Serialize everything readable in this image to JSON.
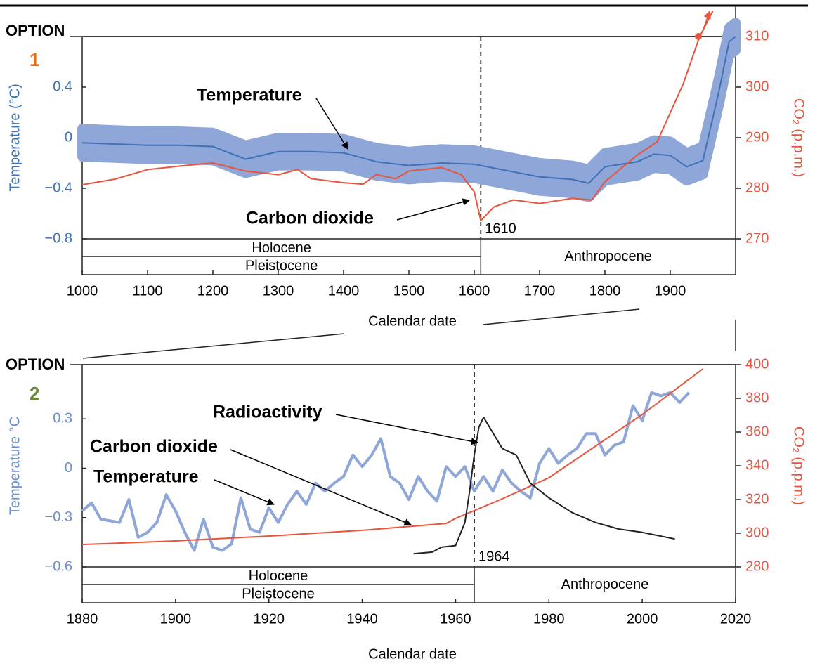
{
  "chart_data": [
    {
      "type": "line",
      "option": "OPTION",
      "option_number": "1",
      "option_color": "#e07020",
      "y_label": "Temperature (°C)",
      "y2_label": "CO₂ (p.p.m.)",
      "x_label": "Calendar date",
      "xlim": [
        1000,
        2000
      ],
      "xticks": [
        1000,
        1100,
        1200,
        1300,
        1400,
        1500,
        1600,
        1700,
        1800,
        1900
      ],
      "ylim": [
        -0.8,
        0.8
      ],
      "yticks": [
        {
          "value": -0.8,
          "label": "−0.8"
        },
        {
          "value": -0.4,
          "label": "−0.4"
        },
        0,
        0.4
      ],
      "y2lim": [
        270,
        310
      ],
      "y2ticks": [
        270,
        280,
        290,
        300,
        310
      ],
      "boundary": 1610,
      "epochs": [
        "Holocene",
        "Pleistocene",
        "Anthropocene"
      ],
      "series": [
        {
          "name": "Temperature",
          "color": "#3d72b8",
          "band_color": "#8ea6d8",
          "uncertainty": 0.11,
          "x": [
            1000,
            1050,
            1100,
            1150,
            1200,
            1250,
            1300,
            1350,
            1400,
            1450,
            1500,
            1550,
            1600,
            1650,
            1700,
            1750,
            1775,
            1800,
            1850,
            1875,
            1900,
            1925,
            1950,
            1975,
            1990,
            2000
          ],
          "values": [
            -0.04,
            -0.05,
            -0.06,
            -0.06,
            -0.07,
            -0.17,
            -0.11,
            -0.11,
            -0.12,
            -0.19,
            -0.22,
            -0.2,
            -0.21,
            -0.26,
            -0.31,
            -0.33,
            -0.36,
            -0.23,
            -0.19,
            -0.13,
            -0.14,
            -0.23,
            -0.18,
            0.38,
            0.76,
            0.8
          ]
        },
        {
          "name": "Carbon dioxide",
          "color": "#e8553e",
          "axis": "y2",
          "x": [
            1000,
            1050,
            1100,
            1150,
            1200,
            1250,
            1300,
            1330,
            1350,
            1400,
            1430,
            1450,
            1480,
            1500,
            1550,
            1580,
            1600,
            1610,
            1630,
            1660,
            1700,
            1750,
            1780,
            1800,
            1850,
            1880,
            1920,
            1945,
            1965
          ],
          "values": [
            280.7,
            281.8,
            283.7,
            284.4,
            285,
            283.4,
            282.7,
            283.7,
            281.9,
            281.1,
            280.8,
            282.7,
            281.9,
            283.4,
            284.1,
            282.7,
            279.3,
            273.6,
            276.3,
            277.7,
            277,
            278,
            277.7,
            281.3,
            286.6,
            289.2,
            300.7,
            310,
            315
          ]
        }
      ]
    },
    {
      "type": "line",
      "option": "OPTION",
      "option_number": "2",
      "option_color": "#6a8a3a",
      "y_label": "Temperature °C",
      "y2_label": "CO₂ (p.p.m.)",
      "x_label": "Calendar date",
      "xlim": [
        1880,
        2020
      ],
      "xticks": [
        1880,
        1900,
        1920,
        1940,
        1960,
        1980,
        2000,
        2020
      ],
      "ylim": [
        -0.6,
        0.63
      ],
      "yticks": [
        {
          "value": -0.6,
          "label": "−0.6"
        },
        {
          "value": -0.3,
          "label": "−0.3"
        },
        0,
        0.3
      ],
      "y2lim": [
        280,
        400
      ],
      "y2ticks": [
        280,
        300,
        320,
        340,
        360,
        380,
        400
      ],
      "boundary": 1964,
      "epochs": [
        "Holocene",
        "Pleistocene",
        "Anthropocene"
      ],
      "series": [
        {
          "name": "Temperature",
          "color": "#8fa6d9",
          "x": [
            1880,
            1882,
            1884,
            1886,
            1888,
            1890,
            1892,
            1894,
            1896,
            1898,
            1900,
            1902,
            1904,
            1906,
            1908,
            1910,
            1912,
            1914,
            1916,
            1918,
            1920,
            1922,
            1924,
            1926,
            1928,
            1930,
            1932,
            1934,
            1936,
            1938,
            1940,
            1942,
            1944,
            1946,
            1948,
            1950,
            1952,
            1954,
            1956,
            1958,
            1960,
            1962,
            1964,
            1966,
            1968,
            1970,
            1972,
            1974,
            1976,
            1978,
            1980,
            1982,
            1984,
            1986,
            1988,
            1990,
            1992,
            1994,
            1996,
            1998,
            2000,
            2002,
            2004,
            2006,
            2008,
            2010
          ],
          "values": [
            -0.26,
            -0.21,
            -0.31,
            -0.32,
            -0.33,
            -0.19,
            -0.42,
            -0.39,
            -0.33,
            -0.16,
            -0.26,
            -0.39,
            -0.5,
            -0.31,
            -0.48,
            -0.5,
            -0.46,
            -0.18,
            -0.37,
            -0.39,
            -0.24,
            -0.33,
            -0.22,
            -0.14,
            -0.22,
            -0.09,
            -0.14,
            -0.09,
            -0.05,
            0.08,
            0.01,
            0.08,
            0.18,
            -0.05,
            -0.09,
            -0.19,
            -0.05,
            -0.14,
            -0.2,
            0.01,
            -0.05,
            0.01,
            -0.14,
            -0.05,
            -0.14,
            -0.01,
            -0.09,
            -0.14,
            -0.18,
            0.03,
            0.12,
            0.03,
            0.08,
            0.12,
            0.21,
            0.21,
            0.08,
            0.14,
            0.16,
            0.38,
            0.29,
            0.46,
            0.44,
            0.46,
            0.4,
            0.46
          ]
        },
        {
          "name": "Carbon dioxide",
          "color": "#e8553e",
          "axis": "y2",
          "x": [
            1880,
            1900,
            1920,
            1940,
            1958,
            1960,
            1970,
            1980,
            1990,
            2000,
            2010,
            2013
          ],
          "values": [
            293.3,
            295.4,
            298.3,
            301.7,
            305.8,
            308.8,
            320.4,
            332.9,
            351.7,
            370.4,
            391.3,
            397.5
          ]
        },
        {
          "name": "Radioactivity",
          "color": "#222222",
          "x": [
            1951,
            1955,
            1957,
            1960,
            1962,
            1963,
            1964,
            1965,
            1966,
            1970,
            1973,
            1976,
            1980,
            1985,
            1990,
            1995,
            2000,
            2007
          ],
          "values": [
            -0.52,
            -0.51,
            -0.48,
            -0.47,
            -0.33,
            -0.14,
            0.08,
            0.25,
            0.31,
            0.12,
            0.08,
            -0.09,
            -0.18,
            -0.27,
            -0.33,
            -0.37,
            -0.39,
            -0.43
          ]
        }
      ]
    }
  ]
}
